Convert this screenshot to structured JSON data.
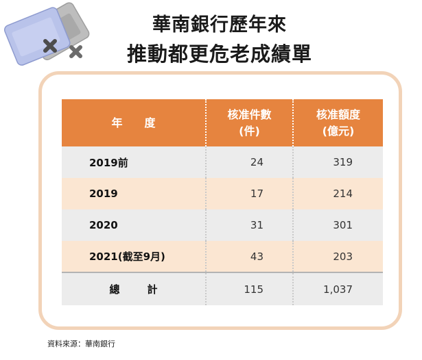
{
  "title": {
    "line1": "華南銀行歷年來",
    "line2": "推動都更危老成績單"
  },
  "table": {
    "headers": {
      "year": "年　　度",
      "count_line1": "核准件數",
      "count_line2": "(件)",
      "amount_line1": "核准額度",
      "amount_line2": "(億元)"
    },
    "rows": [
      {
        "year": "2019前",
        "count": "24",
        "amount": "319"
      },
      {
        "year": "2019",
        "count": "17",
        "amount": "214"
      },
      {
        "year": "2020",
        "count": "31",
        "amount": "301"
      },
      {
        "year": "2021(截至9月)",
        "count": "43",
        "amount": "203"
      }
    ],
    "total": {
      "label_a": "總",
      "label_b": "計",
      "count": "115",
      "amount": "1,037"
    }
  },
  "source": "資料來源：華南銀行",
  "icons": {
    "decoration": "overlapping-cards-with-x-icon"
  },
  "colors": {
    "header_bg": "#e6843f",
    "frame_border": "#f2d3b8",
    "row_gray": "#ececec",
    "row_peach": "#fbe6d2"
  }
}
